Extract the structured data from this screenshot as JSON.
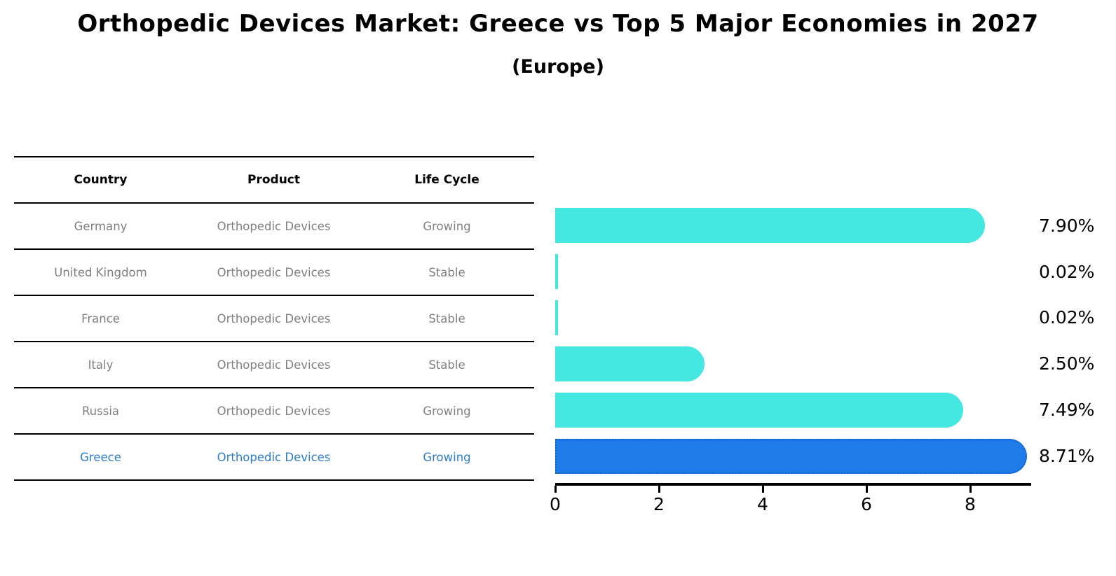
{
  "title": "Orthopedic Devices Market: Greece vs Top 5 Major Economies in 2027",
  "subtitle": "(Europe)",
  "table": {
    "headers": [
      "Country",
      "Product",
      "Life Cycle"
    ],
    "rows": [
      {
        "country": "Germany",
        "product": "Orthopedic Devices",
        "life_cycle": "Growing",
        "value_label": "7.90%"
      },
      {
        "country": "United Kingdom",
        "product": "Orthopedic Devices",
        "life_cycle": "Stable",
        "value_label": "0.02%"
      },
      {
        "country": "France",
        "product": "Orthopedic Devices",
        "life_cycle": "Stable",
        "value_label": "0.02%"
      },
      {
        "country": "Italy",
        "product": "Orthopedic Devices",
        "life_cycle": "Stable",
        "value_label": "2.50%"
      },
      {
        "country": "Russia",
        "product": "Orthopedic Devices",
        "life_cycle": "Growing",
        "value_label": "7.49%"
      },
      {
        "country": "Greece",
        "product": "Orthopedic Devices",
        "life_cycle": "Growing",
        "value_label": "8.71%"
      }
    ]
  },
  "chart_data": {
    "type": "bar",
    "orientation": "horizontal",
    "title": "Orthopedic Devices Market: Greece vs Top 5 Major Economies in 2027 (Europe)",
    "categories": [
      "Germany",
      "United Kingdom",
      "France",
      "Italy",
      "Russia",
      "Greece"
    ],
    "values": [
      7.9,
      0.02,
      0.02,
      2.5,
      7.49,
      8.71
    ],
    "value_labels": [
      "7.90%",
      "0.02%",
      "0.02%",
      "2.50%",
      "7.49%",
      "8.71%"
    ],
    "xlabel": "",
    "ylabel": "",
    "xlim": [
      0,
      9.18
    ],
    "xticks": [
      0,
      2,
      4,
      6,
      8
    ],
    "grid": false,
    "legend": false,
    "highlight_index": 5,
    "bar_color": "#45e8e1",
    "highlight_color": "#1e7ce8",
    "highlight_border_color": "#1160c8"
  },
  "colors": {
    "background": "#ffffff",
    "text_primary": "#000000",
    "text_muted": "#7f7f7f",
    "highlight_text": "#2e7dc9"
  }
}
